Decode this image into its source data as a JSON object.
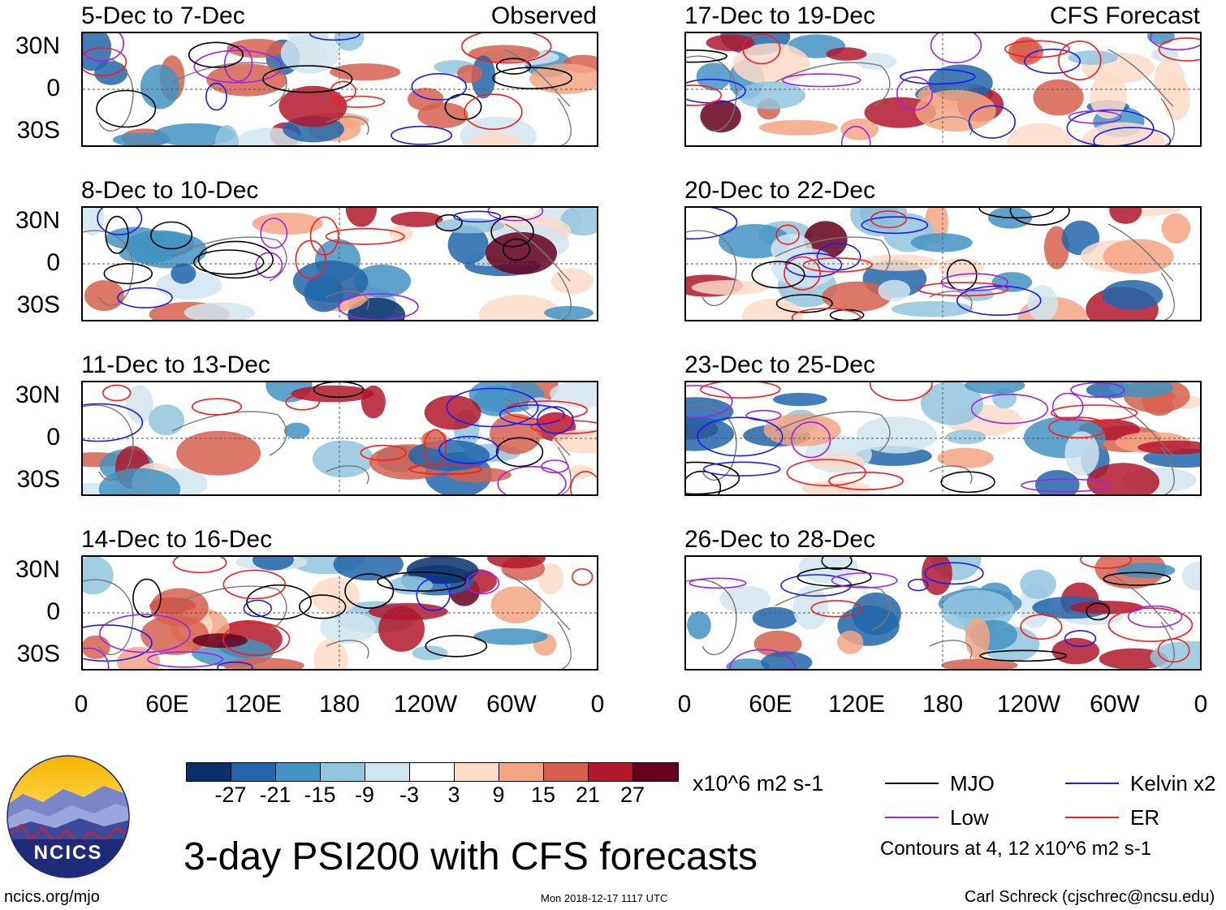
{
  "panels_left": [
    {
      "title": "5-Dec to 7-Dec",
      "tag": "Observed"
    },
    {
      "title": "8-Dec to 10-Dec",
      "tag": ""
    },
    {
      "title": "11-Dec to 13-Dec",
      "tag": ""
    },
    {
      "title": "14-Dec to 16-Dec",
      "tag": ""
    }
  ],
  "panels_right": [
    {
      "title": "17-Dec to 19-Dec",
      "tag": "CFS Forecast"
    },
    {
      "title": "20-Dec to 22-Dec",
      "tag": ""
    },
    {
      "title": "23-Dec to 25-Dec",
      "tag": ""
    },
    {
      "title": "26-Dec to 28-Dec",
      "tag": ""
    }
  ],
  "y_ticks": [
    "30N",
    "0",
    "30S"
  ],
  "x_ticks": [
    "0",
    "60E",
    "120E",
    "180",
    "120W",
    "60W",
    "0"
  ],
  "colorbar": {
    "labels": [
      "-27",
      "-21",
      "-15",
      "-9",
      "-3",
      "3",
      "9",
      "15",
      "21",
      "27"
    ],
    "colors": [
      "#08306b",
      "#2166ac",
      "#4393c3",
      "#92c5de",
      "#d1e5f0",
      "#ffffff",
      "#fddbc7",
      "#f4a582",
      "#d6604d",
      "#b2182b",
      "#67001f"
    ],
    "units": "x10^6 m2 s-1"
  },
  "legend": {
    "items": [
      {
        "label": "MJO",
        "color": "#000000"
      },
      {
        "label": "Kelvin x2",
        "color": "#1a1aff"
      },
      {
        "label": "Low",
        "color": "#a020f0"
      },
      {
        "label": "ER",
        "color": "#ff1a1a"
      }
    ],
    "contours_note": "Contours at 4, 12 x10^6 m2 s-1"
  },
  "logo": {
    "text": "NCICS"
  },
  "main_title": "3-day PSI200 with CFS forecasts",
  "footer": {
    "url": "ncics.org/mjo",
    "timestamp": "Mon 2018-12-17 1117 UTC",
    "author": "Carl Schreck (cjschrec@ncsu.edu)"
  }
}
